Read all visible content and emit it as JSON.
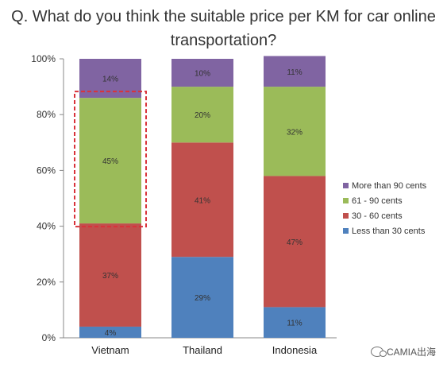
{
  "chart_data": {
    "type": "bar",
    "stacked": true,
    "title_line1": "Q. What do you think the suitable price per KM for car online",
    "title_line2": "transportation?",
    "categories": [
      "Vietnam",
      "Thailand",
      "Indonesia"
    ],
    "series": [
      {
        "name": "Less than 30 cents",
        "values": [
          4,
          29,
          11
        ],
        "labels": [
          "4%",
          "29%",
          "11%"
        ],
        "color": "#4f81bd"
      },
      {
        "name": "30 - 60 cents",
        "values": [
          37,
          41,
          47
        ],
        "labels": [
          "37%",
          "41%",
          "47%"
        ],
        "color": "#c0504d"
      },
      {
        "name": "61 - 90 cents",
        "values": [
          45,
          20,
          32
        ],
        "labels": [
          "45%",
          "20%",
          "32%"
        ],
        "color": "#9bbb59"
      },
      {
        "name": "More than 90 cents",
        "values": [
          14,
          10,
          11
        ],
        "labels": [
          "14%",
          "10%",
          "11%"
        ],
        "color": "#8064a2"
      }
    ],
    "ylim": [
      0,
      100
    ],
    "yticks": [
      "0%",
      "20%",
      "40%",
      "60%",
      "80%",
      "100%"
    ],
    "legend_order": [
      "More than 90 cents",
      "61 - 90 cents",
      "30 - 60 cents",
      "Less than 30 cents"
    ],
    "legend_position": "right",
    "highlight": {
      "category": "Vietnam",
      "series": "61 - 90 cents",
      "style": "dashed red box"
    },
    "grid": false
  },
  "watermark": {
    "text": "CAMIA出海",
    "icon": "wechat-icon"
  }
}
